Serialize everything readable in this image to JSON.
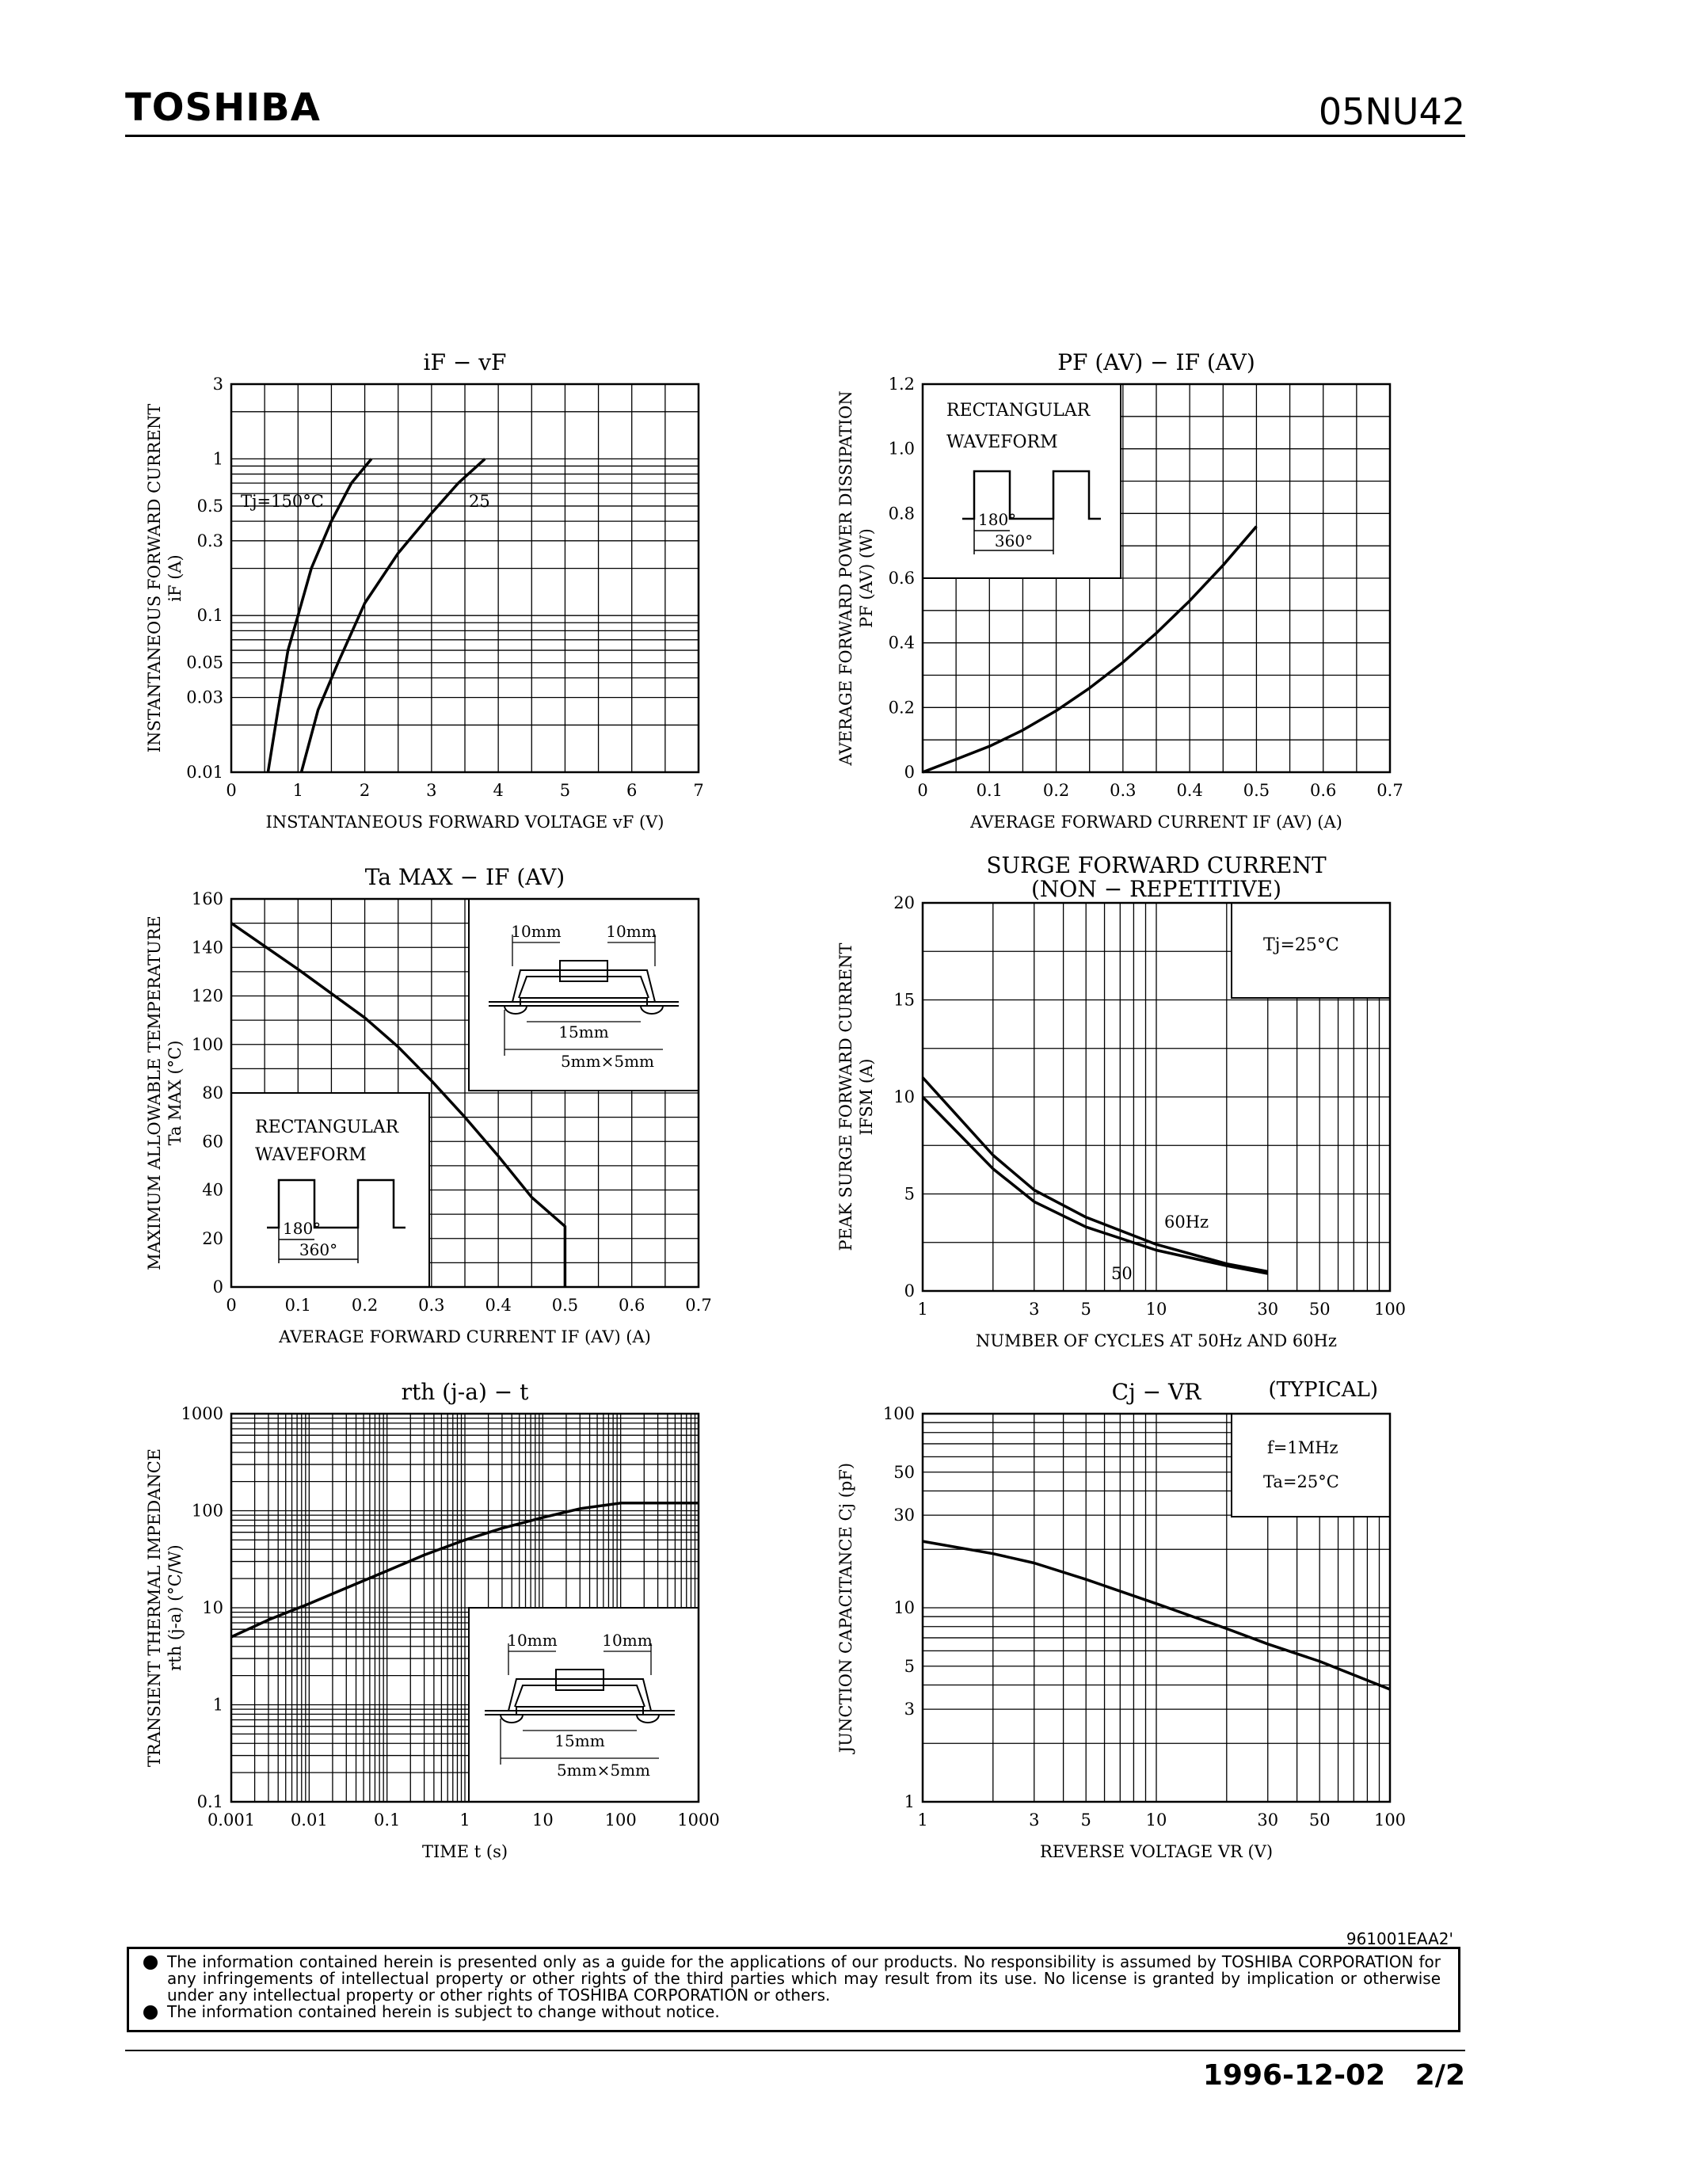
{
  "header": {
    "brand": "TOSHIBA",
    "part_number": "05NU42"
  },
  "chart_data": [
    {
      "id": "if-vf",
      "type": "line",
      "title": "iF − vF",
      "xlabel": "INSTANTANEOUS FORWARD VOLTAGE  vF  (V)",
      "ylabel": "INSTANTANEOUS FORWARD CURRENT",
      "ylabel2": "iF  (A)",
      "xscale": "linear",
      "yscale": "log",
      "xlim": [
        0,
        7
      ],
      "ylim": [
        0.01,
        3
      ],
      "xticks": [
        0,
        1,
        2,
        3,
        4,
        5,
        6,
        7
      ],
      "xticklabels": [
        "0",
        "1",
        "2",
        "3",
        "4",
        "5",
        "6",
        "7"
      ],
      "yticks": [
        0.01,
        0.03,
        0.05,
        0.1,
        0.3,
        0.5,
        1,
        3
      ],
      "yticklabels": [
        "0.01",
        "0.03",
        "0.05",
        "0.1",
        "0.3",
        "0.5",
        "1",
        "3"
      ],
      "series": [
        {
          "name": "Tj=150°C",
          "x": [
            0.55,
            0.7,
            0.85,
            1.0,
            1.2,
            1.5,
            1.8,
            2.1
          ],
          "y": [
            0.01,
            0.025,
            0.06,
            0.1,
            0.2,
            0.4,
            0.7,
            1.0
          ]
        },
        {
          "name": "25",
          "x": [
            1.05,
            1.3,
            1.6,
            2.0,
            2.5,
            3.0,
            3.4,
            3.8
          ],
          "y": [
            0.01,
            0.025,
            0.05,
            0.12,
            0.25,
            0.45,
            0.7,
            1.0
          ]
        }
      ],
      "annotations": [
        "Tj=150°C",
        "25"
      ]
    },
    {
      "id": "pf-if",
      "type": "line",
      "title": "PF (AV) − IF (AV)",
      "xlabel": "AVERAGE FORWARD CURRENT  IF (AV)  (A)",
      "ylabel": "AVERAGE FORWARD POWER DISSIPATION",
      "ylabel2": "PF (AV)  (W)",
      "xscale": "linear",
      "yscale": "linear",
      "xlim": [
        0,
        0.7
      ],
      "ylim": [
        0,
        1.2
      ],
      "xticks": [
        0,
        0.1,
        0.2,
        0.3,
        0.4,
        0.5,
        0.6,
        0.7
      ],
      "xticklabels": [
        "0",
        "0.1",
        "0.2",
        "0.3",
        "0.4",
        "0.5",
        "0.6",
        "0.7"
      ],
      "yticks": [
        0,
        0.2,
        0.4,
        0.6,
        0.8,
        1.0,
        1.2
      ],
      "yticklabels": [
        "0",
        "0.2",
        "0.4",
        "0.6",
        "0.8",
        "1.0",
        "1.2"
      ],
      "series": [
        {
          "name": "",
          "x": [
            0,
            0.05,
            0.1,
            0.15,
            0.2,
            0.25,
            0.3,
            0.35,
            0.4,
            0.45,
            0.5
          ],
          "y": [
            0,
            0.04,
            0.08,
            0.13,
            0.19,
            0.26,
            0.34,
            0.43,
            0.53,
            0.64,
            0.76
          ]
        }
      ],
      "annotations": [
        "RECTANGULAR",
        "WAVEFORM",
        "180°",
        "360°"
      ]
    },
    {
      "id": "ta-if",
      "type": "line",
      "title": "Ta MAX − IF (AV)",
      "xlabel": "AVERAGE FORWARD CURRENT  IF (AV)  (A)",
      "ylabel": "MAXIMUM ALLOWABLE TEMPERATURE",
      "ylabel2": "Ta  MAX  (°C)",
      "xscale": "linear",
      "yscale": "linear",
      "xlim": [
        0,
        0.7
      ],
      "ylim": [
        0,
        160
      ],
      "xticks": [
        0,
        0.1,
        0.2,
        0.3,
        0.4,
        0.5,
        0.6,
        0.7
      ],
      "xticklabels": [
        "0",
        "0.1",
        "0.2",
        "0.3",
        "0.4",
        "0.5",
        "0.6",
        "0.7"
      ],
      "yticks": [
        0,
        20,
        40,
        60,
        80,
        100,
        120,
        140,
        160
      ],
      "yticklabels": [
        "0",
        "20",
        "40",
        "60",
        "80",
        "100",
        "120",
        "140",
        "160"
      ],
      "series": [
        {
          "name": "",
          "x": [
            0,
            0.1,
            0.2,
            0.25,
            0.3,
            0.35,
            0.4,
            0.45,
            0.5,
            0.5
          ],
          "y": [
            150,
            131,
            111,
            99,
            85,
            70,
            54,
            37,
            25,
            0
          ]
        }
      ],
      "annotations": [
        "10mm",
        "10mm",
        "15mm",
        "5mm×5mm",
        "RECTANGULAR",
        "WAVEFORM",
        "180°",
        "360°"
      ]
    },
    {
      "id": "ifsm-cycles",
      "type": "line",
      "title": "SURGE FORWARD CURRENT",
      "subtitle": "(NON − REPETITIVE)",
      "xlabel": "NUMBER OF CYCLES AT 50Hz AND 60Hz",
      "ylabel": "PEAK SURGE FORWARD CURRENT",
      "ylabel2": "IFSM  (A)",
      "xscale": "log",
      "yscale": "linear",
      "xlim": [
        1,
        100
      ],
      "ylim": [
        0,
        20
      ],
      "xticks": [
        1,
        3,
        5,
        10,
        30,
        50,
        100
      ],
      "xticklabels": [
        "1",
        "3",
        "5",
        "10",
        "30",
        "50",
        "100"
      ],
      "yticks": [
        0,
        5,
        10,
        15,
        20
      ],
      "yticklabels": [
        "0",
        "5",
        "10",
        "15",
        "20"
      ],
      "series": [
        {
          "name": "60Hz",
          "x": [
            1,
            2,
            3,
            5,
            10,
            20,
            30
          ],
          "y": [
            11,
            7,
            5.2,
            3.8,
            2.4,
            1.4,
            1.0
          ]
        },
        {
          "name": "50",
          "x": [
            1,
            2,
            3,
            5,
            10,
            20,
            30
          ],
          "y": [
            10,
            6.3,
            4.6,
            3.3,
            2.1,
            1.3,
            0.9
          ]
        }
      ],
      "annotations": [
        "Tj=25°C",
        "60Hz",
        "50"
      ]
    },
    {
      "id": "rth-t",
      "type": "line",
      "title": "rth (j-a) − t",
      "xlabel": "TIME   t   (s)",
      "ylabel": "TRANSIENT THERMAL IMPEDANCE",
      "ylabel2": "rth (j-a)  (°C/W)",
      "xscale": "log",
      "yscale": "log",
      "xlim": [
        0.001,
        1000
      ],
      "ylim": [
        0.1,
        1000
      ],
      "xticks": [
        0.001,
        0.01,
        0.1,
        1,
        10,
        100,
        1000
      ],
      "xticklabels": [
        "0.001",
        "0.01",
        "0.1",
        "1",
        "10",
        "100",
        "1000"
      ],
      "yticks": [
        0.1,
        1,
        10,
        100,
        1000
      ],
      "yticklabels": [
        "0.1",
        "1",
        "10",
        "100",
        "1000"
      ],
      "series": [
        {
          "name": "",
          "x": [
            0.001,
            0.003,
            0.01,
            0.03,
            0.1,
            0.3,
            1,
            3,
            10,
            30,
            100,
            300,
            1000
          ],
          "y": [
            5,
            7.5,
            11,
            16,
            24,
            35,
            50,
            66,
            85,
            105,
            120,
            120,
            120
          ]
        }
      ],
      "annotations": [
        "10mm",
        "10mm",
        "15mm",
        "5mm×5mm"
      ]
    },
    {
      "id": "cj-vr",
      "type": "line",
      "title": "Cj − VR",
      "subtitle": "(TYPICAL)",
      "xlabel": "REVERSE VOLTAGE  VR  (V)",
      "ylabel": "JUNCTION CAPACITANCE  Cj  (pF)",
      "xscale": "log",
      "yscale": "log",
      "xlim": [
        1,
        100
      ],
      "ylim": [
        1,
        100
      ],
      "xticks": [
        1,
        3,
        5,
        10,
        30,
        50,
        100
      ],
      "xticklabels": [
        "1",
        "3",
        "5",
        "10",
        "30",
        "50",
        "100"
      ],
      "yticks": [
        1,
        3,
        5,
        10,
        30,
        50,
        100
      ],
      "yticklabels": [
        "1",
        "3",
        "5",
        "10",
        "30",
        "50",
        "100"
      ],
      "series": [
        {
          "name": "",
          "x": [
            1,
            2,
            3,
            5,
            10,
            20,
            30,
            50,
            100
          ],
          "y": [
            22,
            19,
            17,
            14,
            10.5,
            7.8,
            6.5,
            5.3,
            3.8
          ]
        }
      ],
      "annotations": [
        "f=1MHz",
        "Ta=25°C"
      ]
    }
  ],
  "document_id": "961001EAA2'",
  "disclaimer": [
    "The information contained herein is presented only as a guide for the applications of our products. No responsibility is assumed by TOSHIBA CORPORATION for any infringements of intellectual property or other rights of the third parties which may result from its use. No license is granted by implication or otherwise under any intellectual property or other rights of TOSHIBA CORPORATION or others.",
    "The information contained herein is subject to change without notice."
  ],
  "footer": {
    "date": "1996-12-02",
    "page": "2/2"
  }
}
